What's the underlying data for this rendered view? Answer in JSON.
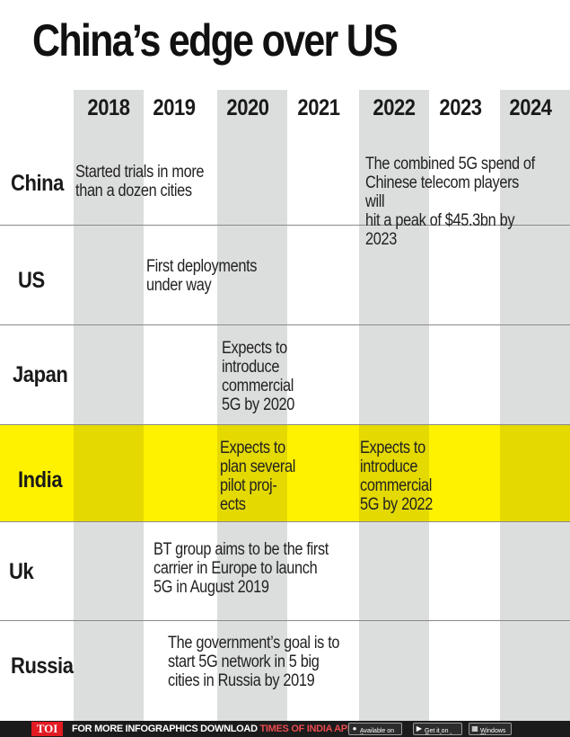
{
  "title": "China’s edge over US",
  "years": [
    "2018",
    "2019",
    "2020",
    "2021",
    "2022",
    "2023",
    "2024"
  ],
  "countries": [
    "China",
    "US",
    "Japan",
    "India",
    "Uk",
    "Russia"
  ],
  "highlight_color": "#fff200",
  "notes": {
    "china_2018": "Started trials in more\nthan a dozen cities",
    "china_2022": "The combined 5G spend of\nChinese telecom players will\nhit a peak of $45.3bn by 2023",
    "us_2019": "First deployments\nunder way",
    "japan_2020": "Expects to\nintroduce\ncommercial\n5G by 2020",
    "india_2020": "Expects to\nplan several\npilot proj-\nects",
    "india_2022": "Expects to\nintroduce\ncommercial\n5G by 2022",
    "uk_2019": "BT group aims to be the first\ncarrier in Europe to launch\n5G in August 2019",
    "russia_2019": "The government’s goal is to\nstart 5G network in 5 big\ncities in Russia by 2019"
  },
  "footer": {
    "logo": "TOI",
    "text_prefix": "FOR MORE  INFOGRAPHICS DOWNLOAD ",
    "text_accent": "TIMES OF INDIA APP",
    "appstore_icon": "apple-icon",
    "appstore_label": "Available on the\nApp Store",
    "googleplay_icon": "play-icon",
    "googleplay_label": "Get it on\nGoogle play",
    "windows_icon": "windows-icon",
    "windows_label": "Windows\nPhone"
  }
}
